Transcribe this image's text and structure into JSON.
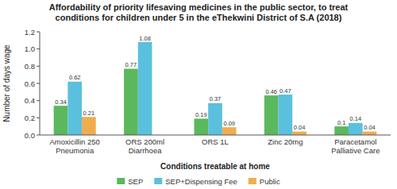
{
  "chart_data": {
    "type": "bar",
    "title": "Affordability of priority lifesaving medicines in the public sector, to treat\nconditions for children under 5 in the eThekwini District of S.A (2018)",
    "x_label": "Conditions treatable at home",
    "y_label": "Number of days wage",
    "categories": [
      "Amoxicillin 250\nPneumonia",
      "ORS 200ml\nDiarrhoea",
      "ORS 1L",
      "Zinc 20mg",
      "Paracetamol\nPalliative Care"
    ],
    "series": [
      {
        "name": "SEP",
        "color": "#5cb85c",
        "values": [
          0.34,
          0.77,
          0.19,
          0.46,
          0.1
        ]
      },
      {
        "name": "SEP+Dispensing Fee",
        "color": "#5bc0de",
        "values": [
          0.62,
          1.08,
          0.37,
          0.47,
          0.14
        ]
      },
      {
        "name": "Public",
        "color": "#f0ad4e",
        "values": [
          0.21,
          0.0,
          0.09,
          0.04,
          0.04
        ]
      }
    ],
    "ylim": [
      0,
      1.2
    ],
    "yticks": [
      {
        "value": 0,
        "label": "0.0"
      },
      0.2,
      0.4,
      0.6,
      0.8,
      {
        "value": 1.0,
        "label": "1.0"
      },
      1.2
    ],
    "grid": false,
    "legend": "bottom",
    "data_labels": true
  }
}
